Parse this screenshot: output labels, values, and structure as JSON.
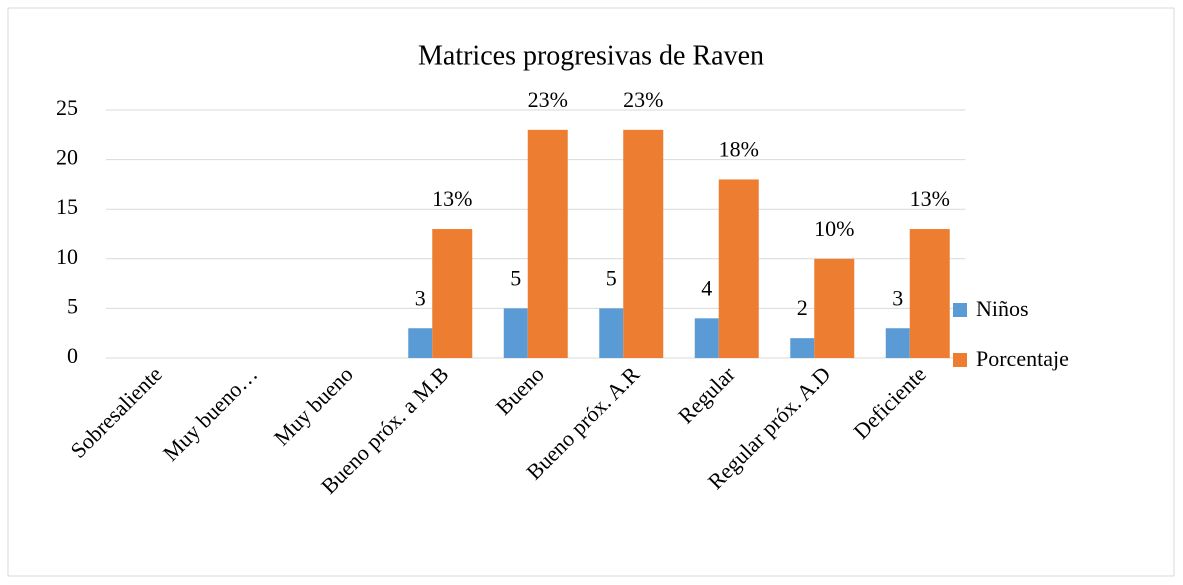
{
  "chart_data": {
    "type": "bar",
    "title": "Matrices progresivas de Raven",
    "categories": [
      "Sobresaliente",
      "Muy bueno…",
      "Muy bueno",
      "Bueno próx. a M.B",
      "Bueno",
      "Bueno próx. A.R",
      "Regular",
      "Regular próx. A.D",
      "Deficiente"
    ],
    "series": [
      {
        "name": "Niños",
        "color": "#5b9bd5",
        "values": [
          null,
          null,
          null,
          3,
          5,
          5,
          4,
          2,
          3
        ]
      },
      {
        "name": "Porcentaje",
        "color": "#ed7d31",
        "values": [
          null,
          null,
          null,
          13,
          23,
          23,
          18,
          10,
          13
        ],
        "value_labels": [
          null,
          null,
          null,
          "13%",
          "23%",
          "23%",
          "18%",
          "10%",
          "13%"
        ]
      }
    ],
    "ylim": [
      0,
      25
    ],
    "yticks": [
      0,
      5,
      10,
      15,
      20,
      25
    ],
    "grid": true,
    "legend": "right"
  }
}
